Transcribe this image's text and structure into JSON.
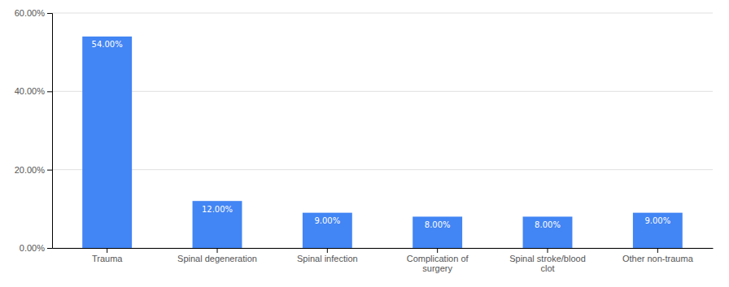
{
  "chart_data": {
    "type": "bar",
    "categories": [
      "Trauma",
      "Spinal degeneration",
      "Spinal infection",
      "Complication of\nsurgery",
      "Spinal stroke/blood\nclot",
      "Other non-trauma"
    ],
    "values": [
      54.0,
      12.0,
      9.0,
      8.0,
      8.0,
      9.0
    ],
    "value_labels": [
      "54.00%",
      "12.00%",
      "9.00%",
      "8.00%",
      "8.00%",
      "9.00%"
    ],
    "data_labels": true,
    "color": "#4285F4",
    "ylim": [
      0,
      60
    ],
    "yticks": [
      {
        "value": 0,
        "label": "0.00%"
      },
      {
        "value": 20,
        "label": "20.00%"
      },
      {
        "value": 40,
        "label": "40.00%"
      },
      {
        "value": 60,
        "label": "60.00%"
      }
    ],
    "grid": true
  }
}
